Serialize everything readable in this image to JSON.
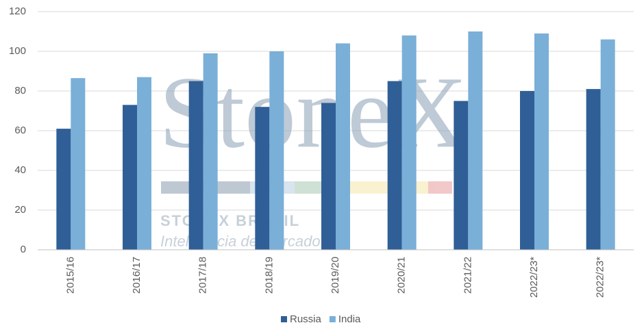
{
  "chart_data": {
    "type": "bar",
    "categories": [
      "2015/16",
      "2016/17",
      "2017/18",
      "2018/19",
      "2019/20",
      "2020/21",
      "2021/22",
      "2022/23*",
      "2022/23*"
    ],
    "series": [
      {
        "name": "Russia",
        "color": "#2f5f96",
        "values": [
          61,
          73,
          85,
          72,
          74,
          85,
          75,
          80,
          81
        ]
      },
      {
        "name": "India",
        "color": "#7aafd8",
        "values": [
          86.5,
          87,
          99,
          100,
          104,
          108,
          110,
          109,
          106
        ]
      }
    ],
    "ylim": [
      0,
      120
    ],
    "yticks": [
      0,
      20,
      40,
      60,
      80,
      100,
      120
    ],
    "grid": true,
    "legend": "bottom",
    "watermark": {
      "logo": "StoneX",
      "company": "STONEX BRASIL",
      "tagline": "Inteligência de Mercado"
    }
  }
}
